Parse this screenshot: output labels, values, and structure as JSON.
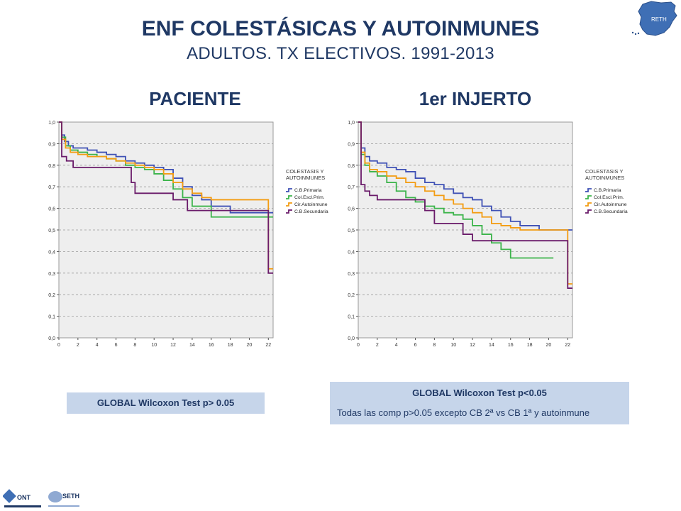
{
  "header": {
    "title": "ENF COLESTÁSICAS Y AUTOINMUNES",
    "subtitle": "ADULTOS. TX ELECTIVOS. 1991-2013"
  },
  "panels": {
    "left_title": "PACIENTE",
    "right_title": "1er INJERTO"
  },
  "boxes": {
    "left": "GLOBAL Wilcoxon Test p> 0.05",
    "right_line1": "GLOBAL Wilcoxon Test p<0.05",
    "right_line2": "Todas las comp p>0.05 excepto CB 2ª vs CB 1ª y autoinmune"
  },
  "logos": {
    "map_label": "RETH",
    "ont_label": "ONT",
    "seth_label": "SETH"
  },
  "colors": {
    "title": "#1f3864",
    "plot_bg": "#eeeeee",
    "box_bg": "#c6d5ea",
    "C.B.Primaria": "#3f51b5",
    "Col.Escl.Prim.": "#3cb44b",
    "Cir.Autoinmune": "#f39c12",
    "C.B.Secundaria": "#6a1b6a"
  },
  "chart_data": [
    {
      "type": "line",
      "step": true,
      "title": "PACIENTE",
      "xlim": [
        0,
        22.5
      ],
      "ylim": [
        0,
        1
      ],
      "xticks": [
        "0",
        "2",
        "4",
        "6",
        "8",
        "10",
        "12",
        "14",
        "16",
        "18",
        "20",
        "22"
      ],
      "yticks": [
        "0,0",
        "0,1",
        "0,2",
        "0,3",
        "0,4",
        "0,5",
        "0,6",
        "0,7",
        "0,8",
        "0,9",
        "1,0"
      ],
      "grid": true,
      "legend_title": [
        "COLESTASIS Y",
        "AUTOINMUNES"
      ],
      "legend_position": "right",
      "series": [
        {
          "name": "C.B.Primaria",
          "color": "#3f51b5",
          "x": [
            0,
            0.3,
            0.6,
            1,
            1.5,
            2,
            3,
            4,
            5,
            6,
            7,
            8,
            9,
            10,
            11,
            12,
            13,
            14,
            15,
            16,
            18,
            22.5
          ],
          "y": [
            1,
            0.94,
            0.91,
            0.89,
            0.88,
            0.88,
            0.87,
            0.86,
            0.85,
            0.84,
            0.82,
            0.81,
            0.8,
            0.79,
            0.78,
            0.74,
            0.7,
            0.66,
            0.64,
            0.61,
            0.58,
            0.58
          ]
        },
        {
          "name": "Col.Escl.Prim.",
          "color": "#3cb44b",
          "x": [
            0,
            0.3,
            0.7,
            1.2,
            2,
            3,
            4,
            5,
            6,
            7,
            8,
            9,
            10,
            11,
            12,
            13,
            14,
            16,
            22.5
          ],
          "y": [
            1,
            0.93,
            0.89,
            0.87,
            0.86,
            0.85,
            0.84,
            0.83,
            0.82,
            0.8,
            0.79,
            0.78,
            0.76,
            0.73,
            0.69,
            0.65,
            0.61,
            0.56,
            0.56
          ]
        },
        {
          "name": "Cir.Autoinmune",
          "color": "#f39c12",
          "x": [
            0,
            0.3,
            0.7,
            1.2,
            2,
            3,
            4,
            5,
            6,
            7,
            8,
            9,
            10,
            11,
            12,
            13,
            14,
            15,
            16,
            21.5,
            22,
            22.5
          ],
          "y": [
            1,
            0.92,
            0.88,
            0.86,
            0.85,
            0.84,
            0.84,
            0.83,
            0.82,
            0.81,
            0.8,
            0.79,
            0.78,
            0.76,
            0.72,
            0.69,
            0.67,
            0.65,
            0.64,
            0.64,
            0.32,
            0.32
          ]
        },
        {
          "name": "C.B.Secundaria",
          "color": "#6a1b6a",
          "x": [
            0,
            0.3,
            0.8,
            1.5,
            7,
            7.6,
            8,
            10,
            12,
            13.5,
            21,
            22,
            22.5
          ],
          "y": [
            1,
            0.84,
            0.82,
            0.79,
            0.79,
            0.72,
            0.67,
            0.67,
            0.64,
            0.59,
            0.59,
            0.3,
            0.3
          ]
        }
      ]
    },
    {
      "type": "line",
      "step": true,
      "title": "1er INJERTO",
      "xlim": [
        0,
        22.5
      ],
      "ylim": [
        0,
        1
      ],
      "xticks": [
        "0",
        "2",
        "4",
        "6",
        "8",
        "10",
        "12",
        "14",
        "16",
        "18",
        "20",
        "22"
      ],
      "yticks": [
        "0,0",
        "0,1",
        "0,2",
        "0,3",
        "0,4",
        "0,5",
        "0,6",
        "0,7",
        "0,8",
        "0,9",
        "1,0"
      ],
      "grid": true,
      "legend_title": [
        "COLESTASIS Y",
        "AUTOINMUNES"
      ],
      "legend_position": "right",
      "series": [
        {
          "name": "C.B.Primaria",
          "color": "#3f51b5",
          "x": [
            0,
            0.3,
            0.7,
            1.2,
            2,
            3,
            4,
            5,
            6,
            7,
            8,
            9,
            10,
            11,
            12,
            13,
            14,
            15,
            16,
            17,
            18,
            19,
            22.5
          ],
          "y": [
            1,
            0.88,
            0.84,
            0.82,
            0.81,
            0.79,
            0.78,
            0.77,
            0.74,
            0.72,
            0.71,
            0.69,
            0.67,
            0.65,
            0.64,
            0.61,
            0.59,
            0.56,
            0.54,
            0.52,
            0.52,
            0.5,
            0.5
          ]
        },
        {
          "name": "Col.Escl.Prim.",
          "color": "#3cb44b",
          "x": [
            0,
            0.3,
            0.7,
            1.2,
            2,
            3,
            4,
            5,
            6,
            7,
            8,
            9,
            10,
            11,
            12,
            13,
            14,
            15,
            16,
            18,
            20.5
          ],
          "y": [
            1,
            0.85,
            0.8,
            0.77,
            0.75,
            0.72,
            0.68,
            0.65,
            0.63,
            0.61,
            0.6,
            0.58,
            0.57,
            0.55,
            0.52,
            0.48,
            0.44,
            0.41,
            0.37,
            0.37,
            0.37
          ]
        },
        {
          "name": "Cir.Autoinmune",
          "color": "#f39c12",
          "x": [
            0,
            0.3,
            0.7,
            1.2,
            2,
            3,
            4,
            5,
            6,
            7,
            8,
            9,
            10,
            11,
            12,
            13,
            14,
            15,
            16,
            17,
            18,
            22,
            22.5
          ],
          "y": [
            1,
            0.86,
            0.81,
            0.78,
            0.77,
            0.75,
            0.74,
            0.72,
            0.7,
            0.68,
            0.66,
            0.64,
            0.62,
            0.6,
            0.58,
            0.56,
            0.53,
            0.52,
            0.51,
            0.5,
            0.5,
            0.25,
            0.25
          ]
        },
        {
          "name": "C.B.Secundaria",
          "color": "#6a1b6a",
          "x": [
            0,
            0.3,
            0.7,
            1.2,
            2,
            3,
            6.5,
            7,
            8,
            10,
            11,
            12,
            14,
            16,
            21,
            22,
            22.5
          ],
          "y": [
            1,
            0.71,
            0.68,
            0.66,
            0.64,
            0.64,
            0.64,
            0.59,
            0.53,
            0.53,
            0.48,
            0.45,
            0.45,
            0.45,
            0.45,
            0.23,
            0.23
          ]
        }
      ]
    }
  ]
}
